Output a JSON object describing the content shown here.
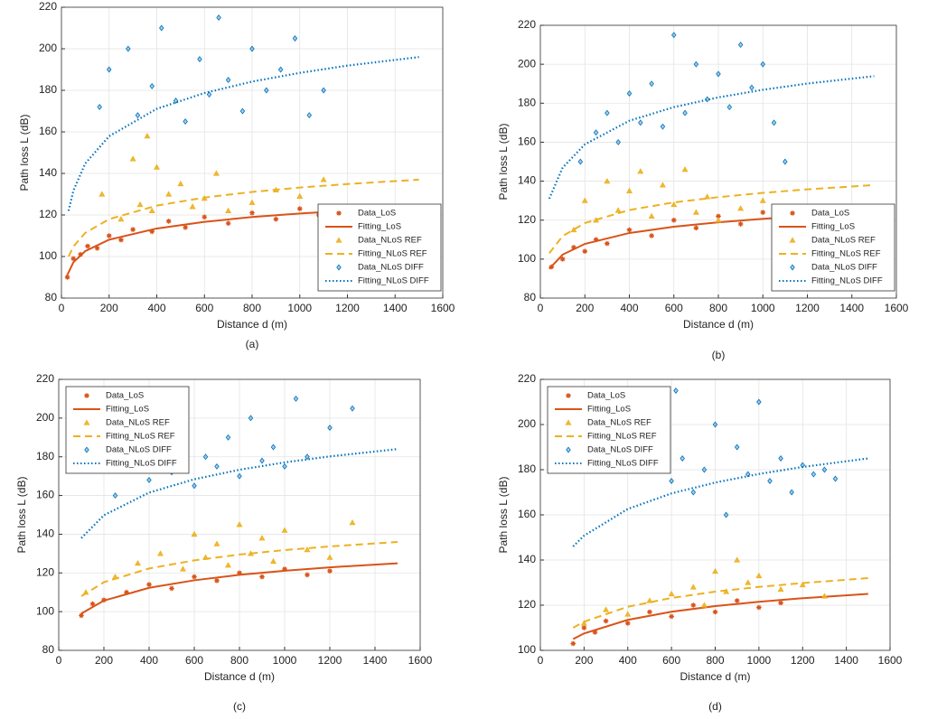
{
  "chart_data": [
    {
      "type": "scatter",
      "caption": "(a)",
      "xlabel": "Distance d (m)",
      "ylabel": "Path loss L (dB)",
      "xlim": [
        0,
        1600
      ],
      "ylim": [
        80,
        220
      ],
      "xticks": [
        0,
        200,
        400,
        600,
        800,
        1000,
        1200,
        1400,
        1600
      ],
      "yticks": [
        80,
        100,
        120,
        140,
        160,
        180,
        200,
        220
      ],
      "grid": true,
      "legend": "lower right",
      "series": [
        {
          "name": "Data_LoS",
          "color": "#d95319",
          "mode": "markers",
          "marker": "star",
          "x": [
            25,
            50,
            80,
            110,
            150,
            200,
            250,
            300,
            380,
            450,
            520,
            600,
            700,
            800,
            900,
            1000,
            1080
          ],
          "values": [
            90,
            99,
            101,
            105,
            104,
            110,
            108,
            113,
            112,
            117,
            114,
            119,
            116,
            121,
            118,
            123,
            120
          ]
        },
        {
          "name": "Fitting_LoS",
          "color": "#d95319",
          "mode": "line",
          "dash": "solid",
          "x": [
            20,
            50,
            100,
            200,
            400,
            600,
            800,
            1000,
            1200,
            1500
          ],
          "values": [
            90,
            97.2,
            102.6,
            108.1,
            113.5,
            116.7,
            119,
            120.7,
            122.1,
            123.9
          ]
        },
        {
          "name": "Data_NLoS REF",
          "color": "#edb120",
          "mode": "markers",
          "marker": "triangle",
          "x": [
            170,
            250,
            300,
            330,
            360,
            380,
            400,
            450,
            500,
            550,
            600,
            650,
            700,
            800,
            900,
            1000,
            1100
          ],
          "values": [
            130,
            118,
            147,
            125,
            158,
            122,
            143,
            130,
            135,
            124,
            128,
            140,
            122,
            126,
            132,
            129,
            137
          ]
        },
        {
          "name": "Fitting_NLoS REF",
          "color": "#edb120",
          "mode": "line",
          "dash": "dashed",
          "x": [
            30,
            50,
            100,
            200,
            400,
            600,
            800,
            1000,
            1200,
            1500
          ],
          "values": [
            100,
            104.8,
            111.4,
            118,
            124.5,
            128.4,
            131.1,
            133.2,
            134.9,
            137
          ]
        },
        {
          "name": "Data_NLoS DIFF",
          "color": "#0072bd",
          "mode": "markers",
          "marker": "diamond",
          "x": [
            160,
            200,
            280,
            320,
            380,
            420,
            480,
            520,
            580,
            620,
            660,
            700,
            760,
            800,
            860,
            920,
            980,
            1040,
            1100
          ],
          "values": [
            172,
            190,
            200,
            168,
            182,
            210,
            175,
            165,
            195,
            178,
            215,
            185,
            170,
            200,
            180,
            190,
            205,
            168,
            180
          ]
        },
        {
          "name": "Fitting_NLoS DIFF",
          "color": "#0072bd",
          "mode": "line",
          "dash": "dotted",
          "x": [
            30,
            50,
            100,
            200,
            400,
            600,
            800,
            1000,
            1200,
            1500
          ],
          "values": [
            122,
            131.7,
            144.8,
            157.9,
            171.1,
            178.7,
            184.2,
            188.4,
            191.9,
            196
          ]
        }
      ]
    },
    {
      "type": "scatter",
      "caption": "(b)",
      "xlabel": "Distance d (m)",
      "ylabel": "Path loss L (dB)",
      "xlim": [
        0,
        1600
      ],
      "ylim": [
        80,
        220
      ],
      "xticks": [
        0,
        200,
        400,
        600,
        800,
        1000,
        1200,
        1400,
        1600
      ],
      "yticks": [
        80,
        100,
        120,
        140,
        160,
        180,
        200,
        220
      ],
      "grid": true,
      "legend": "lower right",
      "series": [
        {
          "name": "Data_LoS",
          "color": "#d95319",
          "mode": "markers",
          "marker": "star",
          "x": [
            50,
            100,
            150,
            200,
            250,
            300,
            400,
            500,
            600,
            700,
            800,
            900,
            1000,
            1100
          ],
          "values": [
            96,
            100,
            106,
            104,
            110,
            108,
            115,
            112,
            120,
            116,
            122,
            118,
            124,
            121
          ]
        },
        {
          "name": "Fitting_LoS",
          "color": "#d95319",
          "mode": "line",
          "dash": "solid",
          "x": [
            40,
            100,
            200,
            400,
            600,
            800,
            1000,
            1200,
            1500
          ],
          "values": [
            95,
            102.3,
            107.8,
            113.4,
            116.6,
            118.9,
            120.7,
            122.2,
            123.9
          ]
        },
        {
          "name": "Data_NLoS REF",
          "color": "#edb120",
          "mode": "markers",
          "marker": "triangle",
          "x": [
            150,
            200,
            250,
            300,
            350,
            400,
            450,
            500,
            550,
            600,
            650,
            700,
            750,
            800,
            900,
            1000,
            1100
          ],
          "values": [
            115,
            130,
            120,
            140,
            125,
            135,
            145,
            122,
            138,
            128,
            146,
            124,
            132,
            120,
            126,
            130,
            123
          ]
        },
        {
          "name": "Fitting_NLoS REF",
          "color": "#edb120",
          "mode": "line",
          "dash": "dashed",
          "x": [
            40,
            100,
            200,
            400,
            600,
            800,
            1000,
            1200,
            1500
          ],
          "values": [
            103,
            111.8,
            118.5,
            125.2,
            129.1,
            131.8,
            134,
            135.8,
            138
          ]
        },
        {
          "name": "Data_NLoS DIFF",
          "color": "#0072bd",
          "mode": "markers",
          "marker": "diamond",
          "x": [
            180,
            250,
            300,
            350,
            400,
            450,
            500,
            550,
            600,
            650,
            700,
            750,
            800,
            850,
            900,
            950,
            1000,
            1050,
            1100
          ],
          "values": [
            150,
            165,
            175,
            160,
            185,
            170,
            190,
            168,
            215,
            175,
            200,
            182,
            195,
            178,
            210,
            188,
            200,
            170,
            150
          ]
        },
        {
          "name": "Fitting_NLoS DIFF",
          "color": "#0072bd",
          "mode": "line",
          "dash": "dotted",
          "x": [
            40,
            100,
            200,
            400,
            600,
            800,
            1000,
            1200,
            1500
          ],
          "values": [
            131,
            146.9,
            158.9,
            171,
            178,
            183,
            186.9,
            190.1,
            193.9
          ]
        }
      ]
    },
    {
      "type": "scatter",
      "caption": "(c)",
      "xlabel": "Distance d (m)",
      "ylabel": "Path loss L (dB)",
      "xlim": [
        0,
        1600
      ],
      "ylim": [
        80,
        220
      ],
      "xticks": [
        0,
        200,
        400,
        600,
        800,
        1000,
        1200,
        1400,
        1600
      ],
      "yticks": [
        80,
        100,
        120,
        140,
        160,
        180,
        200,
        220
      ],
      "grid": true,
      "legend": "upper left",
      "series": [
        {
          "name": "Data_LoS",
          "color": "#d95319",
          "mode": "markers",
          "marker": "star",
          "x": [
            100,
            150,
            200,
            300,
            400,
            500,
            600,
            700,
            800,
            900,
            1000,
            1100,
            1200
          ],
          "values": [
            98,
            104,
            106,
            110,
            114,
            112,
            118,
            116,
            120,
            118,
            122,
            119,
            121
          ]
        },
        {
          "name": "Fitting_LoS",
          "color": "#d95319",
          "mode": "line",
          "dash": "solid",
          "x": [
            100,
            200,
            400,
            600,
            800,
            1000,
            1200,
            1500
          ],
          "values": [
            99,
            105.7,
            112.3,
            116.2,
            119,
            121.1,
            122.9,
            125
          ]
        },
        {
          "name": "Data_NLoS REF",
          "color": "#edb120",
          "mode": "markers",
          "marker": "triangle",
          "x": [
            120,
            250,
            350,
            450,
            550,
            600,
            650,
            700,
            750,
            800,
            850,
            900,
            950,
            1000,
            1100,
            1200,
            1300
          ],
          "values": [
            110,
            118,
            125,
            130,
            122,
            140,
            128,
            135,
            124,
            145,
            130,
            138,
            126,
            142,
            132,
            128,
            146
          ]
        },
        {
          "name": "Fitting_NLoS REF",
          "color": "#edb120",
          "mode": "line",
          "dash": "dashed",
          "x": [
            100,
            200,
            400,
            600,
            800,
            1000,
            1200,
            1500
          ],
          "values": [
            108,
            115.2,
            122.3,
            126.5,
            129.5,
            131.8,
            133.7,
            136
          ]
        },
        {
          "name": "Data_NLoS DIFF",
          "color": "#0072bd",
          "mode": "markers",
          "marker": "diamond",
          "x": [
            250,
            350,
            400,
            450,
            500,
            550,
            600,
            650,
            700,
            750,
            800,
            850,
            900,
            950,
            1000,
            1050,
            1100,
            1200,
            1300
          ],
          "values": [
            160,
            175,
            168,
            185,
            172,
            195,
            165,
            180,
            175,
            190,
            170,
            200,
            178,
            185,
            175,
            210,
            180,
            195,
            205
          ]
        },
        {
          "name": "Fitting_NLoS DIFF",
          "color": "#0072bd",
          "mode": "line",
          "dash": "dotted",
          "x": [
            100,
            200,
            400,
            600,
            800,
            1000,
            1200,
            1500
          ],
          "values": [
            138,
            149.8,
            161.5,
            168.4,
            173.3,
            177.1,
            180.2,
            184
          ]
        }
      ]
    },
    {
      "type": "scatter",
      "caption": "(d)",
      "xlabel": "Distance d (m)",
      "ylabel": "Path loss L (dB)",
      "xlim": [
        0,
        1600
      ],
      "ylim": [
        100,
        220
      ],
      "xticks": [
        0,
        200,
        400,
        600,
        800,
        1000,
        1200,
        1400,
        1600
      ],
      "yticks": [
        100,
        120,
        140,
        160,
        180,
        200,
        220
      ],
      "grid": true,
      "legend": "upper left",
      "series": [
        {
          "name": "Data_LoS",
          "color": "#d95319",
          "mode": "markers",
          "marker": "star",
          "x": [
            150,
            200,
            250,
            300,
            400,
            500,
            600,
            700,
            800,
            900,
            1000,
            1100
          ],
          "values": [
            103,
            110,
            108,
            113,
            112,
            117,
            115,
            120,
            117,
            122,
            119,
            121
          ]
        },
        {
          "name": "Fitting_LoS",
          "color": "#d95319",
          "mode": "line",
          "dash": "solid",
          "x": [
            150,
            200,
            400,
            600,
            800,
            1000,
            1200,
            1500
          ],
          "values": [
            105,
            107.5,
            113.5,
            117.1,
            119.6,
            121.5,
            123.1,
            125
          ]
        },
        {
          "name": "Data_NLoS REF",
          "color": "#edb120",
          "mode": "markers",
          "marker": "triangle",
          "x": [
            200,
            300,
            400,
            500,
            600,
            700,
            750,
            800,
            850,
            900,
            950,
            1000,
            1100,
            1200,
            1300
          ],
          "values": [
            112,
            118,
            116,
            122,
            125,
            128,
            120,
            135,
            126,
            140,
            130,
            133,
            127,
            129,
            124
          ]
        },
        {
          "name": "Fitting_NLoS REF",
          "color": "#edb120",
          "mode": "line",
          "dash": "dashed",
          "x": [
            150,
            200,
            400,
            600,
            800,
            1000,
            1200,
            1500
          ],
          "values": [
            110,
            112.7,
            119.3,
            123.2,
            126,
            128.1,
            129.8,
            132
          ]
        },
        {
          "name": "Data_NLoS DIFF",
          "color": "#0072bd",
          "mode": "markers",
          "marker": "diamond",
          "x": [
            600,
            620,
            650,
            700,
            750,
            800,
            850,
            900,
            950,
            1000,
            1050,
            1100,
            1150,
            1200,
            1250,
            1300,
            1350
          ],
          "values": [
            175,
            215,
            185,
            170,
            180,
            200,
            160,
            190,
            178,
            210,
            175,
            185,
            170,
            182,
            178,
            180,
            176
          ]
        },
        {
          "name": "Fitting_NLoS DIFF",
          "color": "#0072bd",
          "mode": "line",
          "dash": "dotted",
          "x": [
            150,
            200,
            400,
            600,
            800,
            1000,
            1200,
            1500
          ],
          "values": [
            146,
            150.8,
            162.6,
            169.5,
            174.3,
            178.1,
            181.2,
            185
          ]
        }
      ]
    }
  ]
}
